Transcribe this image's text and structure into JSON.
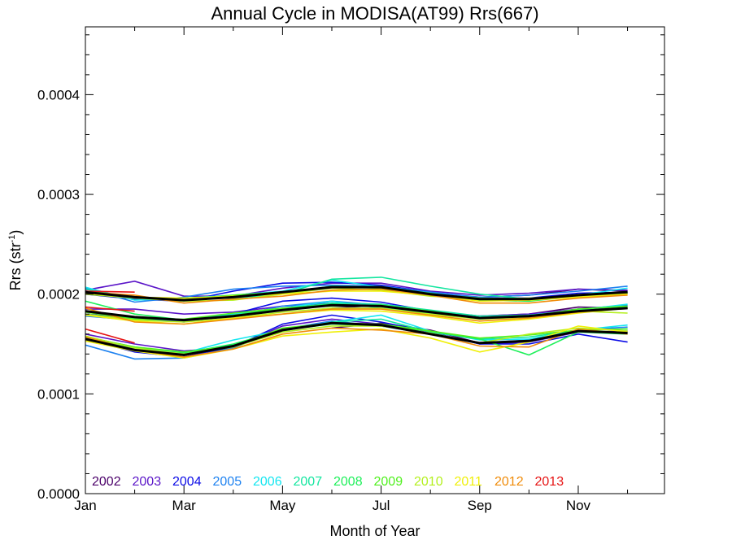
{
  "chart_data": {
    "type": "line",
    "title": "Annual Cycle in MODISA(AT99) Rrs(667)",
    "xlabel": "Month of Year",
    "ylabel_main": "Rrs (str",
    "ylabel_sup": "-1",
    "ylabel_close": ")",
    "xlim": [
      1,
      12.75
    ],
    "ylim": [
      0.0,
      0.000468
    ],
    "x_ticks": [
      {
        "value": 1,
        "label": "Jan"
      },
      {
        "value": 3,
        "label": "Mar"
      },
      {
        "value": 5,
        "label": "May"
      },
      {
        "value": 7,
        "label": "Jul"
      },
      {
        "value": 9,
        "label": "Sep"
      },
      {
        "value": 11,
        "label": "Nov"
      }
    ],
    "y_ticks": [
      {
        "value": 0.0,
        "label": "0.0000"
      },
      {
        "value": 0.0001,
        "label": "0.0001"
      },
      {
        "value": 0.0002,
        "label": "0.0002"
      },
      {
        "value": 0.0003,
        "label": "0.0003"
      },
      {
        "value": 0.0004,
        "label": "0.0004"
      }
    ],
    "grid": false,
    "legend_position": "bottom-left",
    "x": [
      1,
      2,
      3,
      4,
      5,
      6,
      7,
      8,
      9,
      10,
      11,
      12
    ],
    "series": [
      {
        "name": "2002",
        "color": "#4b0069",
        "upper": [
          null,
          null,
          null,
          null,
          null,
          0.000207,
          0.000208,
          0.0002,
          0.000197,
          0.000199,
          0.000205,
          0.000203
        ],
        "mean": [
          null,
          null,
          null,
          null,
          null,
          0.000186,
          0.000189,
          0.000183,
          0.000178,
          0.00018,
          0.000187,
          0.000186
        ],
        "lower": [
          null,
          null,
          null,
          null,
          null,
          0.000166,
          0.000171,
          0.000164,
          0.000151,
          0.000153,
          0.000163,
          0.000162
        ]
      },
      {
        "name": "2003",
        "color": "#5a14c8",
        "upper": [
          0.000204,
          0.000213,
          0.000198,
          0.000198,
          0.000206,
          0.000211,
          0.000211,
          0.000203,
          0.000199,
          0.000201,
          0.000205,
          0.000204
        ],
        "mean": [
          0.000185,
          0.000185,
          0.00018,
          0.000182,
          0.000188,
          0.000191,
          0.00019,
          0.000183,
          0.000178,
          0.00018,
          0.000185,
          0.000186
        ],
        "lower": [
          0.00016,
          0.00015,
          0.000143,
          0.000147,
          0.000168,
          0.000175,
          0.00017,
          0.000162,
          0.00015,
          0.000152,
          0.000162,
          0.000163
        ]
      },
      {
        "name": "2004",
        "color": "#0a0ae6",
        "upper": [
          0.0002,
          0.000195,
          0.000193,
          0.000203,
          0.000211,
          0.000212,
          0.000209,
          0.000202,
          0.000196,
          0.000196,
          0.000201,
          0.000202
        ],
        "mean": [
          0.00018,
          0.000176,
          0.000172,
          0.00018,
          0.000193,
          0.000196,
          0.000192,
          0.000183,
          0.000176,
          0.000178,
          0.000184,
          0.000188
        ],
        "lower": [
          0.000155,
          0.000142,
          0.000137,
          0.000147,
          0.00017,
          0.000179,
          0.000172,
          0.000162,
          0.00015,
          0.00015,
          0.00016,
          0.000152
        ]
      },
      {
        "name": "2005",
        "color": "#1e82f0",
        "upper": [
          0.000206,
          0.000192,
          0.000197,
          0.000205,
          0.000208,
          0.000209,
          0.000208,
          0.000202,
          0.000197,
          0.000199,
          0.000203,
          0.000208
        ],
        "mean": [
          0.000178,
          0.000174,
          0.000173,
          0.000178,
          0.000188,
          0.000193,
          0.000189,
          0.000183,
          0.000176,
          0.000178,
          0.000185,
          0.000189
        ],
        "lower": [
          0.000149,
          0.000135,
          0.000136,
          0.000146,
          0.000165,
          0.000173,
          0.000168,
          0.00016,
          0.000151,
          0.000154,
          0.000164,
          0.000167
        ]
      },
      {
        "name": "2006",
        "color": "#14e6f0",
        "upper": [
          0.000207,
          0.000194,
          0.000196,
          0.000199,
          0.000203,
          0.000214,
          0.000207,
          0.000201,
          0.000195,
          0.000194,
          0.000199,
          0.000206
        ],
        "mean": [
          0.000183,
          0.000176,
          0.000174,
          0.00018,
          0.000186,
          0.000193,
          0.000186,
          0.000181,
          0.000176,
          0.000179,
          0.000184,
          0.00019
        ],
        "lower": [
          0.000157,
          0.000147,
          0.000141,
          0.000154,
          0.000164,
          0.000172,
          0.000179,
          0.000163,
          0.000154,
          0.000155,
          0.000164,
          0.000169
        ]
      },
      {
        "name": "2007",
        "color": "#14e6a0",
        "upper": [
          0.000205,
          0.000196,
          0.000195,
          0.000196,
          0.0002,
          0.000215,
          0.000217,
          0.000208,
          0.0002,
          0.000195,
          0.000198,
          0.000201
        ],
        "mean": [
          0.000183,
          0.000175,
          0.000174,
          0.000179,
          0.000185,
          0.000191,
          0.00019,
          0.000184,
          0.000178,
          0.000179,
          0.000183,
          0.000187
        ],
        "lower": [
          0.000156,
          0.000146,
          0.00014,
          0.000149,
          0.000163,
          0.000172,
          0.000175,
          0.000162,
          0.000155,
          0.000157,
          0.000164,
          0.000165
        ]
      },
      {
        "name": "2008",
        "color": "#1ef05a",
        "upper": [
          0.000202,
          0.000196,
          0.000196,
          0.000198,
          0.000201,
          0.000208,
          0.000207,
          0.000201,
          0.000194,
          0.000193,
          0.000198,
          0.000201
        ],
        "mean": [
          0.000193,
          0.00018,
          0.000174,
          0.000179,
          0.000186,
          0.00019,
          0.000188,
          0.000182,
          0.000176,
          0.000177,
          0.000183,
          0.000186
        ],
        "lower": [
          0.000155,
          0.000144,
          0.000141,
          0.00015,
          0.000164,
          0.00017,
          0.000168,
          0.000163,
          0.000155,
          0.000139,
          0.000162,
          0.00016
        ]
      },
      {
        "name": "2009",
        "color": "#50f01e",
        "upper": [
          0.000203,
          0.000197,
          0.000195,
          0.000199,
          0.000202,
          0.000207,
          0.000206,
          0.0002,
          0.000196,
          0.000195,
          0.000199,
          0.000202
        ],
        "mean": [
          0.000182,
          0.000175,
          0.000175,
          0.000181,
          0.000186,
          0.000188,
          0.000189,
          0.000183,
          0.000176,
          0.000178,
          0.000185,
          0.000188
        ],
        "lower": [
          0.000157,
          0.000147,
          0.000142,
          0.000148,
          0.000166,
          0.000171,
          0.00017,
          0.000163,
          0.000156,
          0.000159,
          0.000164,
          0.000165
        ]
      },
      {
        "name": "2010",
        "color": "#b4f01e",
        "upper": [
          0.0002,
          0.000196,
          0.000193,
          0.000194,
          0.0002,
          0.000206,
          0.000204,
          0.000198,
          0.000195,
          0.000196,
          0.000198,
          0.0002
        ],
        "mean": [
          0.00018,
          0.000174,
          0.000172,
          0.000176,
          0.000182,
          0.000186,
          0.000186,
          0.00018,
          0.000175,
          0.000177,
          0.000183,
          0.000181
        ],
        "lower": [
          0.000158,
          0.000146,
          0.00014,
          0.000147,
          0.000162,
          0.000168,
          0.000168,
          0.000161,
          0.000151,
          0.00016,
          0.000166,
          0.000163
        ]
      },
      {
        "name": "2011",
        "color": "#f0f00a",
        "upper": [
          0.000201,
          0.000197,
          0.000196,
          0.000198,
          0.0002,
          0.000203,
          0.000203,
          0.000199,
          0.000193,
          0.000194,
          0.000197,
          0.0002
        ],
        "mean": [
          0.000179,
          0.000173,
          0.00017,
          0.000176,
          0.00018,
          0.000184,
          0.000183,
          0.000178,
          0.000171,
          0.000175,
          0.000181,
          0.000186
        ],
        "lower": [
          0.000153,
          0.000143,
          0.000136,
          0.000145,
          0.000158,
          0.000162,
          0.000165,
          0.000156,
          0.000142,
          0.000152,
          0.000168,
          0.000162
        ]
      },
      {
        "name": "2012",
        "color": "#f08c0a",
        "upper": [
          0.000202,
          0.000199,
          0.000191,
          0.000195,
          0.000198,
          0.000204,
          0.000205,
          0.000199,
          0.000191,
          0.000191,
          0.000196,
          0.000199
        ],
        "mean": [
          0.000186,
          0.000172,
          0.00017,
          0.000175,
          0.00018,
          0.000185,
          0.000185,
          0.000179,
          0.000173,
          0.000176,
          0.000182,
          0.000186
        ],
        "lower": [
          0.000157,
          0.000144,
          0.000137,
          0.000145,
          0.00016,
          0.000166,
          0.000164,
          0.00016,
          0.000148,
          0.000147,
          0.000165,
          0.00016
        ]
      },
      {
        "name": "2013",
        "color": "#e61414",
        "upper": [
          0.000203,
          0.000202,
          null,
          null,
          null,
          null,
          null,
          null,
          null,
          null,
          null,
          null
        ],
        "mean": [
          0.000187,
          0.000183,
          null,
          null,
          null,
          null,
          null,
          null,
          null,
          null,
          null,
          null
        ],
        "lower": [
          0.000165,
          0.000151,
          null,
          null,
          null,
          null,
          null,
          null,
          null,
          null,
          null,
          null
        ]
      }
    ],
    "climatology": {
      "color": "#000000",
      "upper": [
        0.000202,
        0.000197,
        0.000194,
        0.000197,
        0.000202,
        0.000207,
        0.000207,
        0.0002,
        0.000195,
        0.000195,
        0.000199,
        0.000202
      ],
      "mean": [
        0.000183,
        0.000177,
        0.000174,
        0.000178,
        0.000184,
        0.000189,
        0.000188,
        0.000182,
        0.000176,
        0.000178,
        0.000183,
        0.000186
      ],
      "lower": [
        0.000155,
        0.000144,
        0.000139,
        0.000148,
        0.000164,
        0.000171,
        0.000169,
        0.00016,
        0.000151,
        0.000153,
        0.000163,
        0.000161
      ]
    }
  }
}
